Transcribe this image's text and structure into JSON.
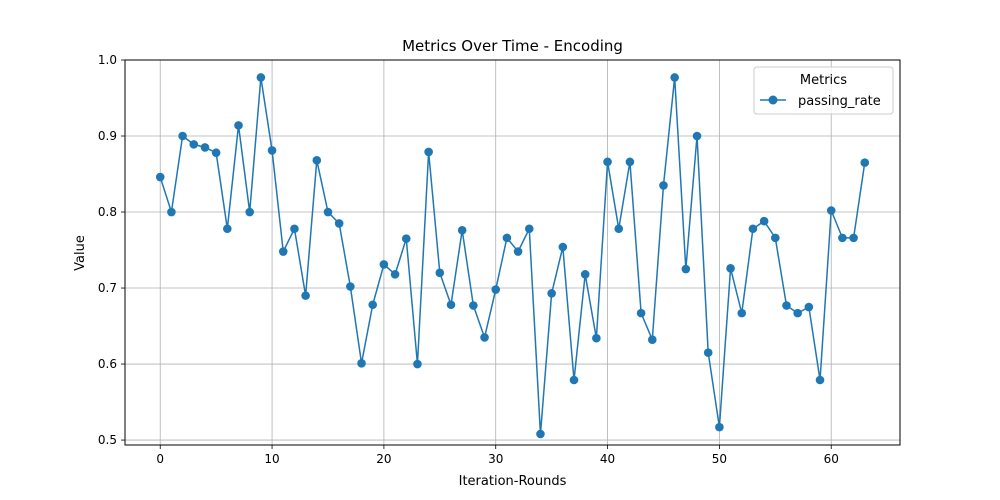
{
  "chart_data": {
    "type": "line",
    "title": "Metrics Over Time - Encoding",
    "xlabel": "Iteration-Rounds",
    "ylabel": "Value",
    "xlim": [
      -3.15,
      66.15
    ],
    "ylim": [
      0.4935,
      1.0
    ],
    "xticks": [
      0,
      10,
      20,
      30,
      40,
      50,
      60
    ],
    "yticks": [
      0.5,
      0.6,
      0.7,
      0.8,
      0.9,
      1.0
    ],
    "xtick_labels": [
      "0",
      "10",
      "20",
      "30",
      "40",
      "50",
      "60"
    ],
    "ytick_labels": [
      "0.5",
      "0.6",
      "0.7",
      "0.8",
      "0.9",
      "1.0"
    ],
    "grid": true,
    "legend": {
      "title": "Metrics",
      "position": "top-right"
    },
    "series": [
      {
        "name": "passing_rate",
        "color": "#1f77b4",
        "marker": "circle",
        "x": [
          0,
          1,
          2,
          3,
          4,
          5,
          6,
          7,
          8,
          9,
          10,
          11,
          12,
          13,
          14,
          15,
          16,
          17,
          18,
          19,
          20,
          21,
          22,
          23,
          24,
          25,
          26,
          27,
          28,
          29,
          30,
          31,
          32,
          33,
          34,
          35,
          36,
          37,
          38,
          39,
          40,
          41,
          42,
          43,
          44,
          45,
          46,
          47,
          48,
          49,
          50,
          51,
          52,
          53,
          54,
          55,
          56,
          57,
          58,
          59,
          60,
          61,
          62,
          63
        ],
        "values": [
          0.846,
          0.8,
          0.9,
          0.889,
          0.885,
          0.878,
          0.778,
          0.914,
          0.8,
          0.977,
          0.881,
          0.748,
          0.778,
          0.69,
          0.868,
          0.8,
          0.785,
          0.702,
          0.601,
          0.678,
          0.731,
          0.718,
          0.765,
          0.6,
          0.879,
          0.72,
          0.678,
          0.776,
          0.677,
          0.635,
          0.698,
          0.766,
          0.748,
          0.778,
          0.508,
          0.693,
          0.754,
          0.579,
          0.718,
          0.634,
          0.866,
          0.778,
          0.866,
          0.667,
          0.632,
          0.835,
          0.977,
          0.725,
          0.9,
          0.615,
          0.517,
          0.726,
          0.667,
          0.778,
          0.788,
          0.766,
          0.677,
          0.667,
          0.675,
          0.579,
          0.802,
          0.766,
          0.766,
          0.865
        ]
      }
    ]
  }
}
